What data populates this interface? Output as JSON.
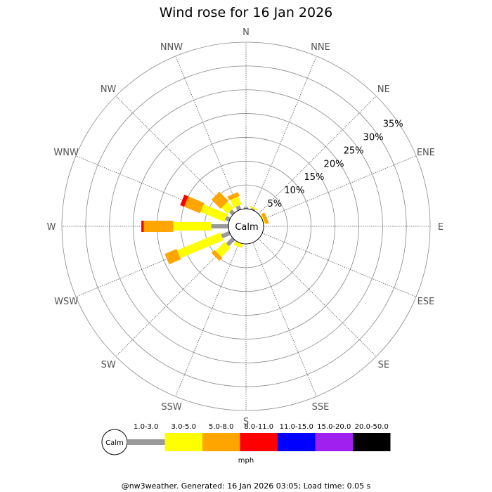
{
  "chart_data": {
    "type": "wind-rose",
    "title": "Wind rose for 16 Jan 2026",
    "center_label": "Calm",
    "directions": [
      "N",
      "NNE",
      "NE",
      "ENE",
      "E",
      "ESE",
      "SE",
      "SSE",
      "S",
      "SSW",
      "SW",
      "WSW",
      "W",
      "WNW",
      "NW",
      "NNW"
    ],
    "ring_labels": [
      "5%",
      "10%",
      "15%",
      "20%",
      "25%",
      "30%",
      "35%"
    ],
    "ring_max": 35,
    "unit": "mph",
    "speed_bins": [
      {
        "label": "1.0-3.0",
        "color": "#999999"
      },
      {
        "label": "3.0-5.0",
        "color": "#ffff00"
      },
      {
        "label": "5.0-8.0",
        "color": "#ffa500"
      },
      {
        "label": "8.0-11.0",
        "color": "#ff0000"
      },
      {
        "label": "11.0-15.0",
        "color": "#0000ff"
      },
      {
        "label": "15.0-20.0",
        "color": "#a020f0"
      },
      {
        "label": "20.0-50.0",
        "color": "#000000"
      }
    ],
    "series": [
      {
        "direction": "N",
        "segments": [
          0.3,
          0,
          0,
          0,
          0,
          0,
          0
        ]
      },
      {
        "direction": "NNE",
        "segments": [
          0.3,
          0.3,
          0,
          0,
          0,
          0,
          0
        ]
      },
      {
        "direction": "NE",
        "segments": [
          0,
          0,
          0,
          0,
          0,
          0,
          0
        ]
      },
      {
        "direction": "ENE",
        "segments": [
          0,
          0.3,
          0.7,
          0,
          0,
          0,
          0
        ]
      },
      {
        "direction": "E",
        "segments": [
          0,
          0,
          0,
          0,
          0,
          0,
          0
        ]
      },
      {
        "direction": "ESE",
        "segments": [
          0,
          0,
          0,
          0,
          0,
          0,
          0
        ]
      },
      {
        "direction": "SE",
        "segments": [
          0,
          0,
          0,
          0,
          0,
          0,
          0
        ]
      },
      {
        "direction": "SSE",
        "segments": [
          0,
          0,
          0,
          0,
          0,
          0,
          0
        ]
      },
      {
        "direction": "S",
        "segments": [
          0,
          0,
          0,
          0,
          0,
          0,
          0
        ]
      },
      {
        "direction": "SSW",
        "segments": [
          0,
          0.9,
          0,
          0,
          0,
          0,
          0
        ]
      },
      {
        "direction": "SW",
        "segments": [
          1.8,
          2.7,
          0.9,
          0,
          0,
          0,
          0
        ]
      },
      {
        "direction": "WSW",
        "segments": [
          1.8,
          9.8,
          2.7,
          0,
          0,
          0,
          0
        ]
      },
      {
        "direction": "W",
        "segments": [
          3.6,
          8.0,
          6.2,
          0.5,
          0,
          0,
          0
        ]
      },
      {
        "direction": "WNW",
        "segments": [
          0.9,
          5.4,
          3.6,
          0.9,
          0,
          0,
          0
        ]
      },
      {
        "direction": "NW",
        "segments": [
          0.9,
          1.8,
          2.7,
          0,
          0,
          0,
          0
        ]
      },
      {
        "direction": "NNW",
        "segments": [
          0.9,
          1.8,
          0.9,
          0,
          0,
          0,
          0
        ]
      }
    ]
  },
  "footer": "@nw3weather. Generated: 16 Jan 2026 03:05; Load time: 0.05 s"
}
